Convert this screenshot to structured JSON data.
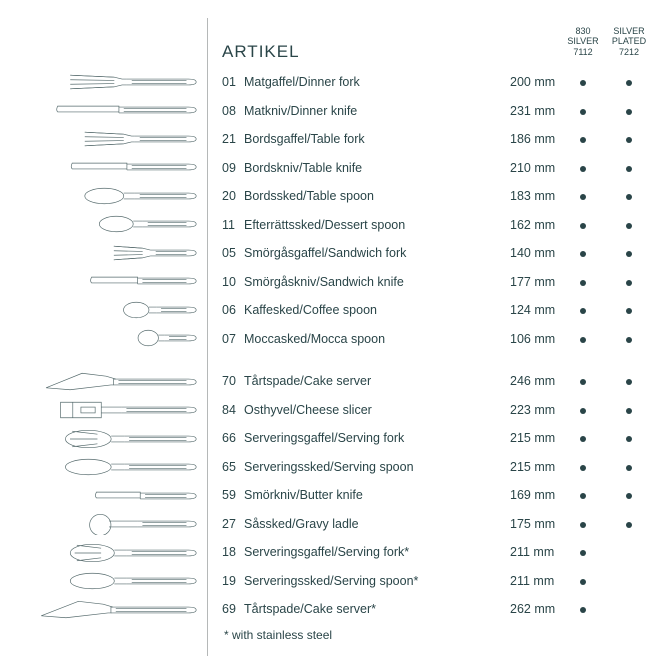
{
  "title": "ARTIKEL",
  "column_headers": [
    "830\nSILVER\n7112",
    "SILVER\nPLATED\n7212"
  ],
  "footnote": "* with stainless steel",
  "colors": {
    "text": "#2a4548",
    "stroke": "#556a6c",
    "divider": "#b5b8b8",
    "background": "#ffffff"
  },
  "rows": [
    {
      "num": "01",
      "name": "Matgaffel/Dinner fork",
      "size": "200 mm",
      "dots": [
        true,
        true
      ]
    },
    {
      "num": "08",
      "name": "Matkniv/Dinner knife",
      "size": "231 mm",
      "dots": [
        true,
        true
      ]
    },
    {
      "num": "21",
      "name": "Bordsgaffel/Table fork",
      "size": "186 mm",
      "dots": [
        true,
        true
      ]
    },
    {
      "num": "09",
      "name": "Bordskniv/Table knife",
      "size": "210 mm",
      "dots": [
        true,
        true
      ]
    },
    {
      "num": "20",
      "name": "Bordssked/Table spoon",
      "size": "183 mm",
      "dots": [
        true,
        true
      ]
    },
    {
      "num": "11",
      "name": "Efterrättssked/Dessert spoon",
      "size": "162 mm",
      "dots": [
        true,
        true
      ]
    },
    {
      "num": "05",
      "name": "Smörgåsgaffel/Sandwich fork",
      "size": "140 mm",
      "dots": [
        true,
        true
      ]
    },
    {
      "num": "10",
      "name": "Smörgåskniv/Sandwich knife",
      "size": "177 mm",
      "dots": [
        true,
        true
      ]
    },
    {
      "num": "06",
      "name": "Kaffesked/Coffee spoon",
      "size": "124 mm",
      "dots": [
        true,
        true
      ]
    },
    {
      "num": "07",
      "name": "Moccasked/Mocca spoon",
      "size": "106 mm",
      "dots": [
        true,
        true
      ]
    },
    {
      "num": "70",
      "name": "Tårtspade/Cake server",
      "size": "246 mm",
      "dots": [
        true,
        true
      ]
    },
    {
      "num": "84",
      "name": "Osthyvel/Cheese slicer",
      "size": "223 mm",
      "dots": [
        true,
        true
      ]
    },
    {
      "num": "66",
      "name": "Serveringsgaffel/Serving fork",
      "size": "215 mm",
      "dots": [
        true,
        true
      ]
    },
    {
      "num": "65",
      "name": "Serveringssked/Serving spoon",
      "size": "215 mm",
      "dots": [
        true,
        true
      ]
    },
    {
      "num": "59",
      "name": "Smörkniv/Butter knife",
      "size": "169 mm",
      "dots": [
        true,
        true
      ]
    },
    {
      "num": "27",
      "name": "Såssked/Gravy ladle",
      "size": "175 mm",
      "dots": [
        true,
        true
      ]
    },
    {
      "num": "18",
      "name": "Serveringsgaffel/Serving fork*",
      "size": "211 mm",
      "dots": [
        true,
        false
      ]
    },
    {
      "num": "19",
      "name": "Serveringssked/Serving spoon*",
      "size": "211 mm",
      "dots": [
        true,
        false
      ]
    },
    {
      "num": "69",
      "name": "Tårtspade/Cake server*",
      "size": "262 mm",
      "dots": [
        true,
        false
      ]
    }
  ],
  "illustrations": [
    {
      "type": "fork",
      "len": 130
    },
    {
      "type": "knife",
      "len": 145
    },
    {
      "type": "fork",
      "len": 115
    },
    {
      "type": "knife",
      "len": 130
    },
    {
      "type": "spoon",
      "len": 115
    },
    {
      "type": "spoon",
      "len": 100
    },
    {
      "type": "fork",
      "len": 85
    },
    {
      "type": "knife",
      "len": 110
    },
    {
      "type": "spoon",
      "len": 75
    },
    {
      "type": "spoon",
      "len": 60
    },
    {
      "type": "server",
      "len": 155
    },
    {
      "type": "slicer",
      "len": 140
    },
    {
      "type": "servfork",
      "len": 135
    },
    {
      "type": "spoon",
      "len": 135
    },
    {
      "type": "knife",
      "len": 105
    },
    {
      "type": "ladle",
      "len": 110
    },
    {
      "type": "servfork",
      "len": 130
    },
    {
      "type": "spoon",
      "len": 130
    },
    {
      "type": "server",
      "len": 160
    }
  ]
}
